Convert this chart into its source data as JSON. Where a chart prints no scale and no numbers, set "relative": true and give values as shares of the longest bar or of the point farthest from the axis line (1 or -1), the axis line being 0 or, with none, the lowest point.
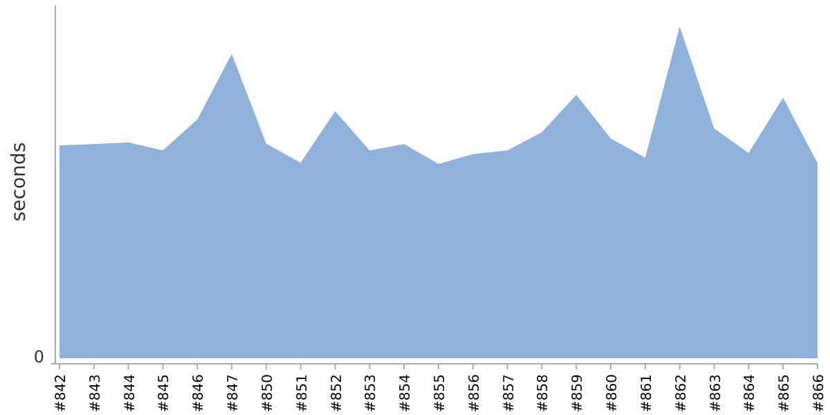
{
  "chart_data": {
    "type": "area",
    "relative": true,
    "ylabel": "seconds",
    "annotations": [
      "0"
    ],
    "categories": [
      "#842",
      "#843",
      "#844",
      "#845",
      "#846",
      "#847",
      "#850",
      "#851",
      "#852",
      "#853",
      "#854",
      "#855",
      "#856",
      "#857",
      "#858",
      "#859",
      "#860",
      "#861",
      "#862",
      "#863",
      "#864",
      "#865",
      "#866"
    ],
    "series": [
      {
        "color": "#8fb1da",
        "values": [
          0.642,
          0.646,
          0.651,
          0.627,
          0.72,
          0.918,
          0.647,
          0.59,
          0.745,
          0.627,
          0.646,
          0.586,
          0.616,
          0.627,
          0.682,
          0.794,
          0.663,
          0.605,
          1,
          0.693,
          0.619,
          0.786,
          0.588
        ]
      }
    ]
  }
}
